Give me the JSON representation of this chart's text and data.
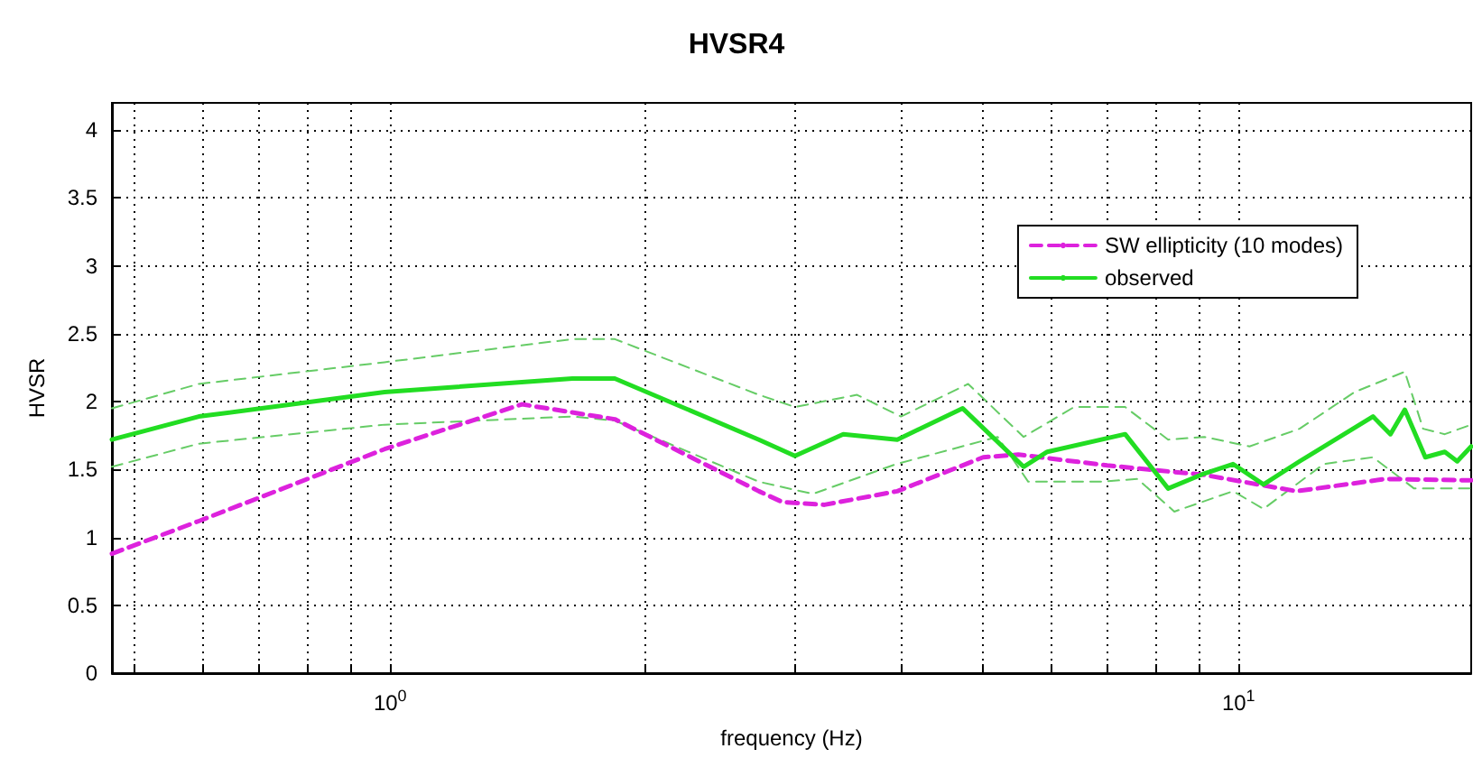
{
  "chart_data": {
    "type": "line",
    "title": "HVSR4",
    "xlabel": "frequency (Hz)",
    "ylabel": "HVSR",
    "log": "x",
    "grid": true,
    "legend": "top right",
    "marker": "none",
    "xlim": [
      0.47,
      18.8
    ],
    "ylim": [
      0,
      4.2
    ],
    "xticks": [
      {
        "value": 0.5,
        "label": null
      },
      {
        "value": 0.6,
        "label": null
      },
      {
        "value": 0.7,
        "label": null
      },
      {
        "value": 0.8,
        "label": null
      },
      {
        "value": 0.9,
        "label": null
      },
      {
        "value": 1,
        "label": "10$^{0}$"
      },
      {
        "value": 2,
        "label": null
      },
      {
        "value": 3,
        "label": null
      },
      {
        "value": 4,
        "label": null
      },
      {
        "value": 5,
        "label": null
      },
      {
        "value": 6,
        "label": null
      },
      {
        "value": 7,
        "label": null
      },
      {
        "value": 8,
        "label": null
      },
      {
        "value": 9,
        "label": null
      },
      {
        "value": 10,
        "label": "10$^{1}$"
      }
    ],
    "yticks": [
      0,
      0.5,
      1,
      1.5,
      2,
      2.5,
      3,
      3.5,
      4
    ],
    "series": [
      {
        "name": "SW ellipticity (10 modes)",
        "color": "#dd22dd",
        "line_style": "dashed",
        "x": [
          0.47,
          0.595,
          0.985,
          1.43,
          1.84,
          2.72,
          2.9,
          3.25,
          3.96,
          5.0,
          5.5,
          7.0,
          9.11,
          11.7,
          14.9,
          18.8
        ],
        "values": [
          0.88,
          1.12,
          1.65,
          1.98,
          1.87,
          1.34,
          1.26,
          1.24,
          1.34,
          1.59,
          1.61,
          1.53,
          1.46,
          1.34,
          1.43,
          1.42
        ]
      },
      {
        "name": "observed",
        "color": "#22dd22",
        "line_style": "solid",
        "x": [
          0.47,
          0.595,
          0.985,
          1.64,
          1.84,
          2.72,
          3.0,
          3.42,
          3.96,
          4.73,
          5.58,
          5.95,
          7.35,
          8.26,
          9.11,
          9.85,
          10.7,
          11.8,
          14.4,
          15.1,
          15.7,
          16.6,
          17.5,
          18.1,
          18.8
        ],
        "values": [
          1.72,
          1.89,
          2.07,
          2.17,
          2.17,
          1.72,
          1.6,
          1.76,
          1.72,
          1.95,
          1.52,
          1.63,
          1.76,
          1.36,
          1.47,
          1.54,
          1.39,
          1.56,
          1.89,
          1.76,
          1.94,
          1.59,
          1.63,
          1.56,
          1.67
        ]
      },
      {
        "color": "#66cc66",
        "line_style": "dashed",
        "x": [
          0.47,
          0.595,
          0.985,
          1.64,
          1.84,
          2.72,
          3.0,
          3.55,
          4.0,
          4.8,
          5.58,
          6.4,
          7.35,
          8.26,
          9.11,
          10.3,
          11.8,
          13.7,
          15.7,
          16.5,
          17.5,
          18.8
        ],
        "values": [
          1.95,
          2.13,
          2.29,
          2.46,
          2.46,
          2.05,
          1.96,
          2.05,
          1.89,
          2.13,
          1.74,
          1.96,
          1.96,
          1.72,
          1.74,
          1.67,
          1.8,
          2.07,
          2.22,
          1.8,
          1.76,
          1.83
        ]
      },
      {
        "color": "#66cc66",
        "line_style": "dashed",
        "x": [
          0.47,
          0.595,
          0.985,
          1.64,
          1.84,
          2.72,
          3.15,
          3.95,
          5.2,
          5.65,
          6.9,
          7.6,
          8.4,
          9.85,
          10.7,
          12.6,
          14.4,
          16.1,
          18.8
        ],
        "values": [
          1.52,
          1.69,
          1.83,
          1.89,
          1.86,
          1.41,
          1.32,
          1.54,
          1.74,
          1.41,
          1.41,
          1.43,
          1.19,
          1.34,
          1.21,
          1.54,
          1.59,
          1.36,
          1.36
        ]
      }
    ]
  }
}
